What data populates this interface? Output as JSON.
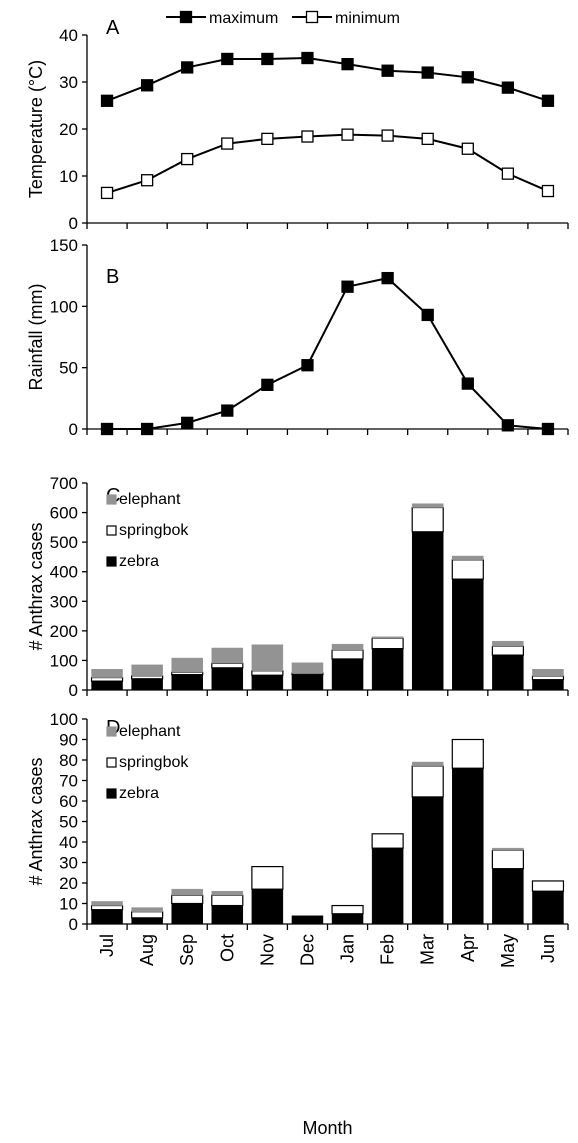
{
  "chart_data": [
    {
      "panel": "A",
      "type": "line",
      "ylabel": "Temperature (°C)",
      "ylim": [
        0,
        40
      ],
      "yticks": [
        0,
        10,
        20,
        30,
        40
      ],
      "categories": [
        "Jul",
        "Aug",
        "Sep",
        "Oct",
        "Nov",
        "Dec",
        "Jan",
        "Feb",
        "Mar",
        "Apr",
        "May",
        "Jun"
      ],
      "legend_position": "top",
      "series": [
        {
          "name": "maximum",
          "marker": "filled-square",
          "values": [
            26,
            29.3,
            33.1,
            34.9,
            34.9,
            35.1,
            33.8,
            32.4,
            32,
            31,
            28.8,
            26
          ]
        },
        {
          "name": "minimum",
          "marker": "open-square",
          "values": [
            6.4,
            9.1,
            13.6,
            16.9,
            17.9,
            18.4,
            18.8,
            18.6,
            17.9,
            15.8,
            10.5,
            6.8
          ]
        }
      ]
    },
    {
      "panel": "B",
      "type": "line",
      "ylabel": "Rainfall (mm)",
      "ylim": [
        0,
        150
      ],
      "yticks": [
        0,
        50,
        100,
        150
      ],
      "categories": [
        "Jul",
        "Aug",
        "Sep",
        "Oct",
        "Nov",
        "Dec",
        "Jan",
        "Feb",
        "Mar",
        "Apr",
        "May",
        "Jun"
      ],
      "series": [
        {
          "marker": "filled-square",
          "values": [
            0,
            0,
            5,
            15,
            36,
            52,
            116,
            123,
            93,
            37,
            3,
            0
          ]
        }
      ]
    },
    {
      "panel": "C",
      "type": "bar",
      "stacked": true,
      "ylabel": "# Anthrax cases",
      "ylim": [
        0,
        700
      ],
      "yticks": [
        0,
        100,
        200,
        300,
        400,
        500,
        600,
        700
      ],
      "categories": [
        "Jul",
        "Aug",
        "Sep",
        "Oct",
        "Nov",
        "Dec",
        "Jan",
        "Feb",
        "Mar",
        "Apr",
        "May",
        "Jun"
      ],
      "legend_position": "top-left",
      "series": [
        {
          "name": "zebra",
          "color": "#000000",
          "values": [
            30,
            38,
            52,
            75,
            50,
            52,
            105,
            140,
            535,
            375,
            118,
            35
          ]
        },
        {
          "name": "springbok",
          "color": "#ffffff",
          "values": [
            12,
            10,
            8,
            15,
            15,
            5,
            30,
            35,
            82,
            65,
            30,
            12
          ]
        },
        {
          "name": "elephant",
          "color": "#939393",
          "values": [
            28,
            37,
            48,
            52,
            88,
            35,
            20,
            5,
            13,
            13,
            17,
            23
          ]
        }
      ]
    },
    {
      "panel": "D",
      "type": "bar",
      "stacked": true,
      "ylabel": "# Anthrax cases",
      "xlabel": "Month",
      "ylim": [
        0,
        100
      ],
      "yticks": [
        0,
        10,
        20,
        30,
        40,
        50,
        60,
        70,
        80,
        90,
        100
      ],
      "categories": [
        "Jul",
        "Aug",
        "Sep",
        "Oct",
        "Nov",
        "Dec",
        "Jan",
        "Feb",
        "Mar",
        "Apr",
        "May",
        "Jun"
      ],
      "legend_position": "top-left",
      "series": [
        {
          "name": "zebra",
          "color": "#000000",
          "values": [
            7,
            3,
            10,
            9,
            17,
            4,
            5,
            37,
            62,
            76,
            27,
            16
          ]
        },
        {
          "name": "springbok",
          "color": "#ffffff",
          "values": [
            2,
            3,
            4,
            5,
            11,
            0,
            4,
            7,
            15,
            14,
            9,
            5
          ]
        },
        {
          "name": "elephant",
          "color": "#939393",
          "values": [
            2,
            2,
            3,
            2,
            0,
            0,
            0,
            0,
            2,
            0,
            1,
            0
          ]
        }
      ]
    }
  ]
}
